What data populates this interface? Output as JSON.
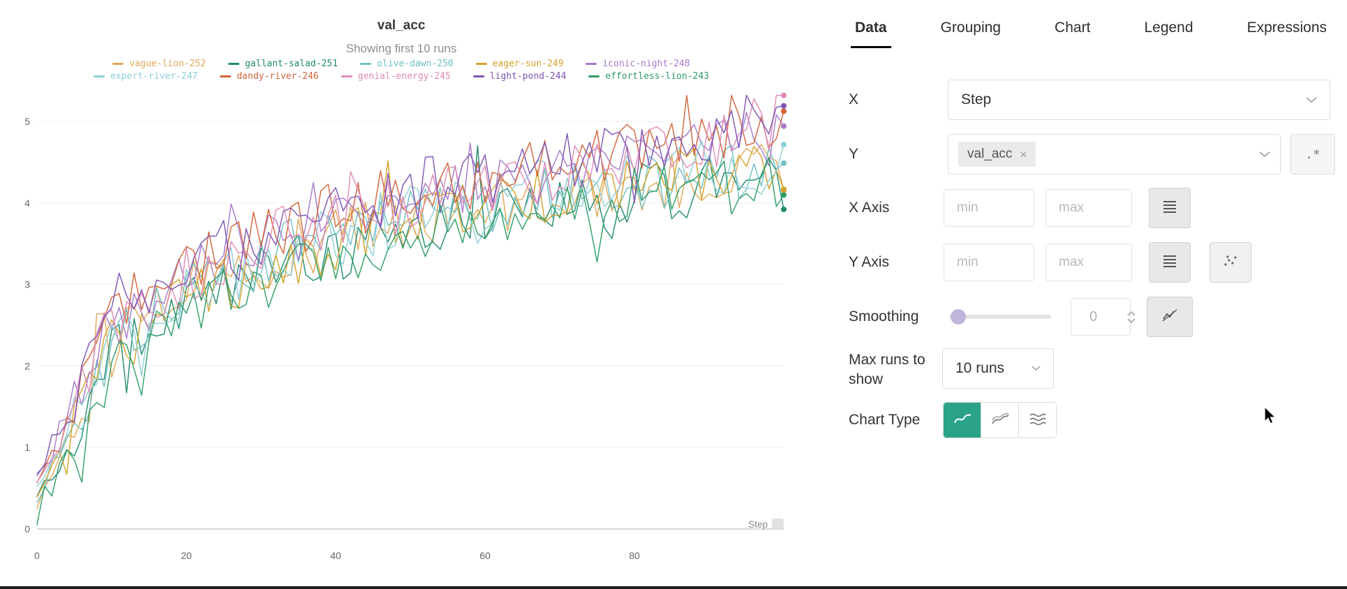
{
  "chart_data": {
    "type": "line",
    "title": "val_acc",
    "subtitle": "Showing first 10 runs",
    "xlabel": "Step",
    "ylabel": "",
    "xlim": [
      0,
      100
    ],
    "ylim": [
      0,
      5.4
    ],
    "x_ticks": [
      0,
      20,
      40,
      60,
      80
    ],
    "y_ticks": [
      0,
      1,
      2,
      3,
      4,
      5
    ],
    "grid": "horizontal-only",
    "legend_position": "top",
    "anchor_x": [
      0,
      10,
      20,
      30,
      40,
      50,
      60,
      70,
      80,
      90,
      100
    ],
    "noise_amplitude": 0.38,
    "series": [
      {
        "name": "vague-lion-252",
        "color": "#dfa858",
        "values": [
          0.2,
          2.2,
          2.9,
          3.3,
          3.6,
          3.8,
          4.0,
          4.1,
          4.2,
          4.35,
          4.45
        ]
      },
      {
        "name": "gallant-salad-251",
        "color": "#1f8a70",
        "values": [
          0.3,
          2.1,
          2.7,
          3.1,
          3.4,
          3.7,
          3.9,
          4.0,
          4.1,
          4.2,
          4.3
        ]
      },
      {
        "name": "olive-dawn-250",
        "color": "#6fc0c2",
        "values": [
          0.4,
          2.3,
          2.9,
          3.3,
          3.6,
          3.8,
          4.0,
          4.15,
          4.25,
          4.35,
          4.45
        ]
      },
      {
        "name": "eager-sun-249",
        "color": "#d4a129",
        "values": [
          0.3,
          2.2,
          2.8,
          3.2,
          3.5,
          3.8,
          4.0,
          4.1,
          4.25,
          4.4,
          4.5
        ]
      },
      {
        "name": "iconic-night-248",
        "color": "#a779c9",
        "values": [
          0.6,
          2.5,
          3.1,
          3.5,
          3.8,
          4.0,
          4.2,
          4.35,
          4.5,
          4.7,
          4.9
        ]
      },
      {
        "name": "expert-river-247",
        "color": "#8ecfd6",
        "values": [
          0.5,
          2.3,
          2.9,
          3.3,
          3.6,
          3.85,
          4.05,
          4.2,
          4.3,
          4.4,
          4.5
        ]
      },
      {
        "name": "dandy-river-246",
        "color": "#d2633a",
        "values": [
          0.4,
          2.6,
          3.2,
          3.6,
          3.9,
          4.1,
          4.3,
          4.45,
          4.6,
          4.75,
          4.9
        ]
      },
      {
        "name": "genial-energy-245",
        "color": "#df8bb5",
        "values": [
          0.5,
          2.5,
          3.1,
          3.5,
          3.8,
          4.0,
          4.2,
          4.4,
          4.55,
          4.75,
          5.0
        ]
      },
      {
        "name": "light-pond-244",
        "color": "#7d54b2",
        "values": [
          0.7,
          2.6,
          3.2,
          3.6,
          3.9,
          4.15,
          4.35,
          4.5,
          4.65,
          4.85,
          5.1
        ]
      },
      {
        "name": "effortless-lion-243",
        "color": "#2e9d64",
        "values": [
          0.2,
          2.0,
          2.6,
          3.0,
          3.3,
          3.6,
          3.8,
          3.95,
          4.05,
          4.15,
          4.25
        ]
      }
    ]
  },
  "panel": {
    "tabs": [
      {
        "label": "Data",
        "active": true
      },
      {
        "label": "Grouping",
        "active": false
      },
      {
        "label": "Chart",
        "active": false
      },
      {
        "label": "Legend",
        "active": false
      },
      {
        "label": "Expressions",
        "active": false
      }
    ],
    "fields": {
      "x_label": "X",
      "x_value": "Step",
      "y_label": "Y",
      "y_tag": "val_acc",
      "y_tag_remove": "×",
      "regex_button": ".*",
      "x_axis_label": "X Axis",
      "y_axis_label": "Y Axis",
      "min_placeholder": "min",
      "max_placeholder": "max",
      "smoothing_label": "Smoothing",
      "smoothing_value": "0",
      "max_runs_label": "Max runs to show",
      "max_runs_value": "10 runs",
      "chart_type_label": "Chart Type"
    }
  },
  "colors": {
    "accent_teal": "#2aa389",
    "slider_thumb": "#c0b4da",
    "tab_underline": "#000000"
  }
}
